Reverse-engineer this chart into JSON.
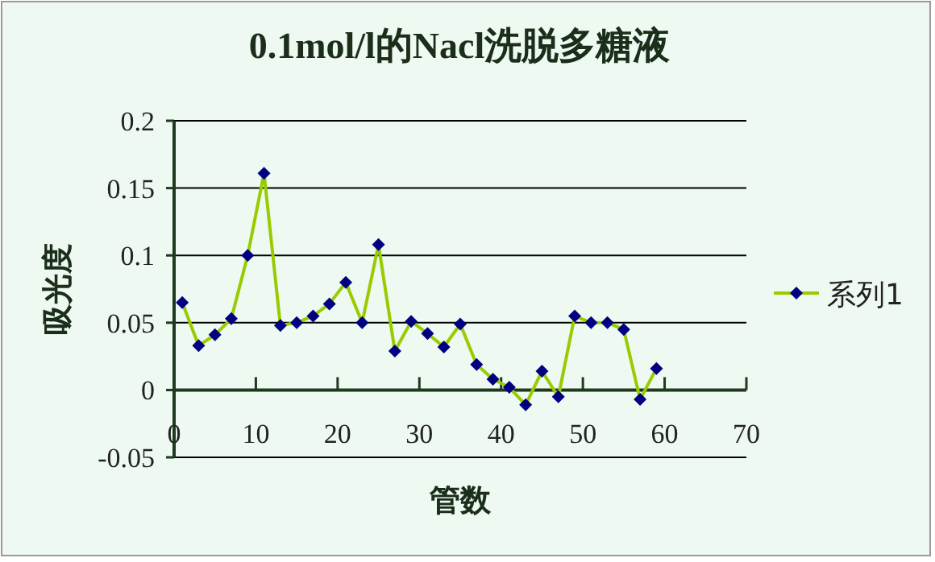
{
  "chart_data": {
    "type": "line",
    "title": "0.1mol/l的Nacl洗脱多糖液",
    "xlabel": "管数",
    "ylabel": "吸光度",
    "x": [
      1,
      3,
      5,
      7,
      9,
      11,
      13,
      15,
      17,
      19,
      21,
      23,
      25,
      27,
      29,
      31,
      33,
      35,
      37,
      39,
      41,
      43,
      45,
      47,
      49,
      51,
      53,
      55,
      57,
      59
    ],
    "series": [
      {
        "name": "系列1",
        "color": "#99cc00",
        "values": [
          0.065,
          0.033,
          0.041,
          0.053,
          0.1,
          0.161,
          0.048,
          0.05,
          0.055,
          0.064,
          0.08,
          0.05,
          0.108,
          0.029,
          0.051,
          0.042,
          0.032,
          0.049,
          0.019,
          0.008,
          0.002,
          -0.011,
          0.014,
          -0.005,
          0.055,
          0.05,
          0.05,
          0.045,
          -0.007,
          0.016
        ]
      }
    ],
    "marker": "diamond",
    "xlim": [
      0,
      70
    ],
    "xticks": [
      0,
      10,
      20,
      30,
      40,
      50,
      60,
      70
    ],
    "ylim": [
      -0.05,
      0.2
    ],
    "yticks": [
      -0.05,
      0,
      0.05,
      0.1,
      0.15,
      0.2
    ],
    "grid": "y",
    "legend": "right"
  }
}
